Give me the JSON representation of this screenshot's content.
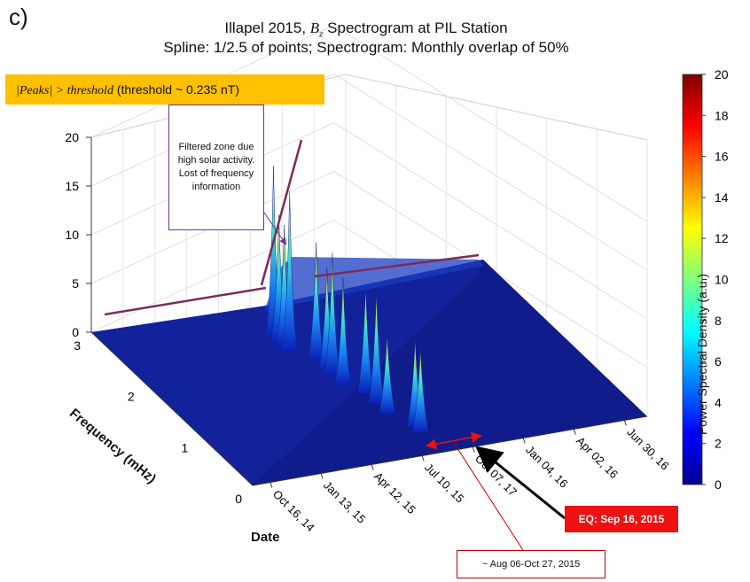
{
  "panel_label": "c)",
  "title_line1_pre": "Illapel 2015, ",
  "title_line1_var": "B",
  "title_line1_sub": "z",
  "title_line1_post": " Spectrogram at PIL Station",
  "title_line2": "Spline: 1/2.5 of points; Spectrogram: Monthly overlap of 50%",
  "threshold_expr": "|Peaks| > threshold",
  "threshold_note": " (threshold  ~  0.235 nT)",
  "callout_text": "Filtered zone due high solar activity. Lost of frequency information",
  "eq_label": "EQ: Sep 16, 2015",
  "window_label": "~ Aug 06-Oct 27, 2015",
  "colors": {
    "threshold_box": "#ffc000",
    "callout_border": "#7030a0",
    "eq_box": "#ee1111",
    "arrow_red": "#ee1111",
    "threshold_line": "#7b2a5a"
  },
  "chart_data": {
    "type": "surface",
    "x_axis_title": "Date",
    "y_axis_title": "Frequency (mHz)",
    "colorbar_label": "Power Spectral Density (a.u.)",
    "x_ticks": [
      "Oct 16, 14",
      "Jan 13, 15",
      "Apr 12, 15",
      "Jul 10, 15",
      "Oct 07, 17",
      "Jan 04, 16",
      "Apr 02, 16",
      "Jun 30, 16"
    ],
    "y_ticks": [
      "0",
      "1",
      "2",
      "3"
    ],
    "z_ticks": [
      "0",
      "5",
      "10",
      "15",
      "20"
    ],
    "zlim": [
      0,
      20
    ],
    "ylim": [
      0,
      3
    ],
    "colorbar_ticks": [
      "0",
      "2",
      "4",
      "6",
      "8",
      "10",
      "12",
      "14",
      "16",
      "18",
      "20"
    ],
    "colorbar_range": [
      0,
      20
    ],
    "colormap": "jet",
    "grid": true,
    "peaks": [
      {
        "date": "Jul 2015",
        "frequency_mhz": 2.4,
        "psd": 17.5
      },
      {
        "date": "Jul 2015",
        "frequency_mhz": 2.3,
        "psd": 13.0
      },
      {
        "date": "Jul 2015",
        "frequency_mhz": 2.2,
        "psd": 12.5
      },
      {
        "date": "Jul 2015",
        "frequency_mhz": 2.1,
        "psd": 16.5
      },
      {
        "date": "Aug 2015",
        "frequency_mhz": 1.9,
        "psd": 12.0
      },
      {
        "date": "Aug 2015",
        "frequency_mhz": 1.7,
        "psd": 10.5
      },
      {
        "date": "Aug 2015",
        "frequency_mhz": 1.6,
        "psd": 12.5
      },
      {
        "date": "Aug 2015",
        "frequency_mhz": 1.4,
        "psd": 11.0
      },
      {
        "date": "Sep 2015",
        "frequency_mhz": 1.2,
        "psd": 11.0
      },
      {
        "date": "Sep 2015",
        "frequency_mhz": 1.0,
        "psd": 11.5
      },
      {
        "date": "Sep 2015",
        "frequency_mhz": 0.8,
        "psd": 8.0
      },
      {
        "date": "Oct 2015",
        "frequency_mhz": 0.5,
        "psd": 9.0
      },
      {
        "date": "Oct 2015",
        "frequency_mhz": 0.4,
        "psd": 8.5
      }
    ],
    "threshold_z": 5
  }
}
